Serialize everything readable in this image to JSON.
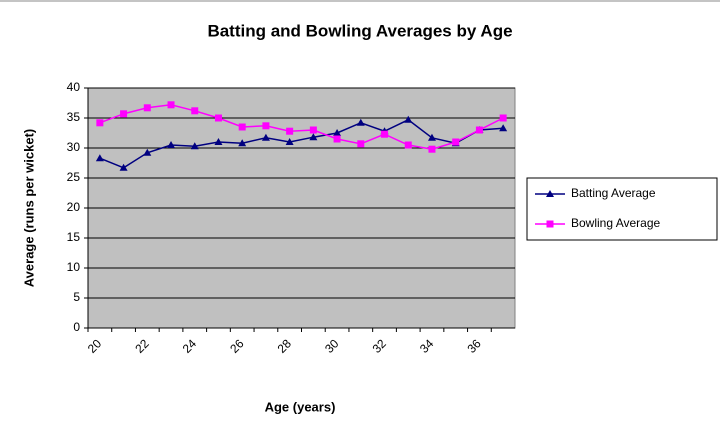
{
  "chart_data": {
    "type": "line",
    "title": "Batting and Bowling Averages by Age",
    "x_label": "Age (years)",
    "y_label": "Average (runs per wicket)",
    "categories": [
      "20",
      null,
      "22",
      null,
      "24",
      null,
      "26",
      null,
      "28",
      null,
      "30",
      null,
      "32",
      null,
      "34",
      null,
      "36",
      null
    ],
    "series": [
      {
        "name": "Batting Average",
        "color": "#000080",
        "marker": "triangle",
        "values": [
          28.3,
          26.7,
          29.2,
          30.5,
          30.3,
          31,
          30.8,
          31.7,
          31,
          31.8,
          32.5,
          34.2,
          32.8,
          34.7,
          31.7,
          30.8,
          33,
          33.3
        ]
      },
      {
        "name": "Bowling Average",
        "color": "#ff00ff",
        "marker": "square",
        "values": [
          34.2,
          35.7,
          36.7,
          37.2,
          36.2,
          35,
          33.5,
          33.7,
          32.8,
          33,
          31.5,
          30.7,
          32.3,
          30.5,
          29.8,
          31,
          33,
          35
        ]
      }
    ],
    "ylim": [
      0,
      40
    ],
    "yticks": [
      0,
      5,
      10,
      15,
      20,
      25,
      30,
      35,
      40
    ],
    "grid": true,
    "legend": "right",
    "plot_background": "#c0c0c0"
  }
}
